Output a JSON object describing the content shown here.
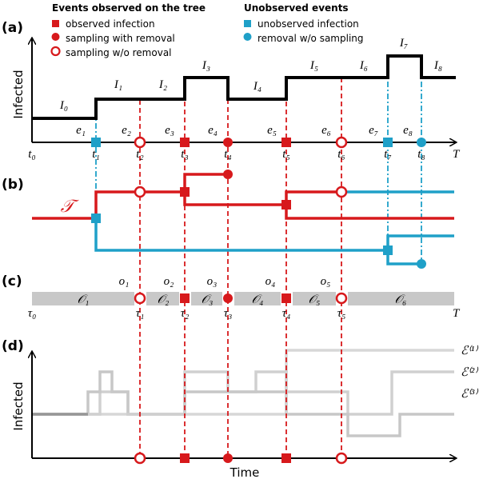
{
  "legend": {
    "observed": {
      "title": "Events observed on the tree",
      "items": [
        "observed infection",
        "sampling with removal",
        "sampling w/o removal"
      ]
    },
    "unobserved": {
      "title": "Unobserved events",
      "items": [
        "unobserved infection",
        "removal w/o sampling"
      ]
    }
  },
  "panel_a": {
    "label": "(a)",
    "y_label": "Infected",
    "levels": [
      "I₀",
      "I₁",
      "I₂",
      "I₃",
      "I₄",
      "I₅",
      "I₆",
      "I₇",
      "I₈"
    ],
    "events": [
      "e₁",
      "e₂",
      "e₃",
      "e₄",
      "e₅",
      "e₆",
      "e₇",
      "e₈"
    ],
    "times": [
      "t₀",
      "t₁",
      "t₂",
      "t₃",
      "t₄",
      "t₅",
      "t₆",
      "t₇",
      "t₈"
    ],
    "end": "T"
  },
  "panel_b": {
    "label": "(b)",
    "tree": "𝒯"
  },
  "panel_c": {
    "label": "(c)",
    "observations": [
      "o₁",
      "o₂",
      "o₃",
      "o₄",
      "o₅"
    ],
    "intervals": [
      "𝒪₁",
      "𝒪₂",
      "𝒪₃",
      "𝒪₄",
      "𝒪₅",
      "𝒪₆"
    ],
    "times": [
      "τ₀",
      "τ₁",
      "τ₂",
      "τ₃",
      "τ₄",
      "τ₅"
    ],
    "end": "T"
  },
  "panel_d": {
    "label": "(d)",
    "y_label": "Infected",
    "x_label": "Time",
    "trajectories": [
      "ℰ⁽¹⁾",
      "ℰ⁽²⁾",
      "ℰ⁽³⁾"
    ]
  }
}
